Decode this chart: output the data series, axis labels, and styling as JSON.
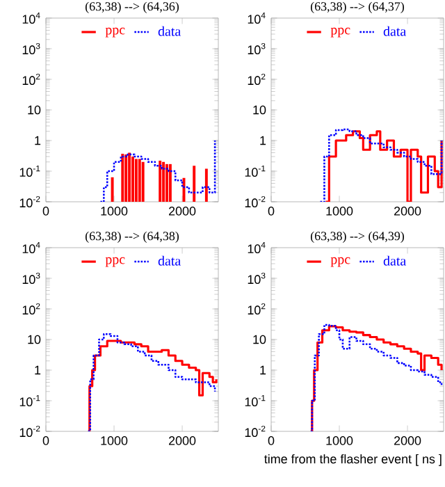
{
  "chart_data": [
    {
      "type": "step",
      "title": "(63,38) --> (64,36)",
      "log": "y",
      "legend": "top",
      "xlim": [
        0,
        2530
      ],
      "ylim": [
        0.01,
        10000
      ],
      "xticks": [
        0,
        1000,
        2000
      ],
      "yticks": [
        {
          "value": 0.01,
          "label": "10$^{-2}$"
        },
        {
          "value": 0.1,
          "label": "10$^{-1}$"
        },
        1,
        10,
        {
          "value": 100,
          "label": "10$^{2}$"
        },
        {
          "value": 1000,
          "label": "10$^{3}$"
        },
        {
          "value": 10000,
          "label": "10$^{4}$"
        }
      ],
      "series": [
        {
          "name": "ppc",
          "type": "bar",
          "color": "#ff0000",
          "line_style": "solid",
          "x": [
            975,
            1125,
            1175,
            1225,
            1275,
            1325,
            1375,
            1425,
            1675,
            1725,
            1775,
            1825,
            2025,
            2175,
            2355
          ],
          "values": [
            0.063,
            0.37,
            0.35,
            0.4,
            0.3,
            0.25,
            0.25,
            0.2,
            0.22,
            0.2,
            0.17,
            0.17,
            0.06,
            0.15,
            0.12
          ]
        },
        {
          "name": "data",
          "color": "#0000ff",
          "line_style": "dotted",
          "x": [
            800,
            850,
            900,
            1000,
            1100,
            1200,
            1300,
            1400,
            1500,
            1600,
            1700,
            1800,
            1900,
            2000,
            2100,
            2200,
            2300,
            2400,
            2480
          ],
          "values": [
            0.01,
            0.03,
            0.1,
            0.2,
            0.3,
            0.35,
            0.3,
            0.25,
            0.2,
            0.15,
            0.12,
            0.1,
            0.05,
            0.03,
            0.02,
            0.02,
            0.03,
            0.02,
            1
          ]
        }
      ]
    },
    {
      "type": "step",
      "title": "(63,38) --> (64,37)",
      "log": "y",
      "legend": "top",
      "xlim": [
        0,
        2530
      ],
      "ylim": [
        0.01,
        10000
      ],
      "xticks": [
        0,
        1000,
        2000
      ],
      "yticks": [
        {
          "value": 0.01,
          "label": "10$^{-2}$"
        },
        {
          "value": 0.1,
          "label": "10$^{-1}$"
        },
        1,
        10,
        {
          "value": 100,
          "label": "10$^{2}$"
        },
        {
          "value": 1000,
          "label": "10$^{3}$"
        },
        {
          "value": 10000,
          "label": "10$^{4}$"
        }
      ],
      "series": [
        {
          "name": "ppc",
          "color": "#ff0000",
          "line_style": "solid",
          "x": [
            800,
            850,
            950,
            1100,
            1200,
            1300,
            1350,
            1450,
            1550,
            1600,
            1700,
            1800,
            1900,
            2000,
            2050,
            2150,
            2200,
            2300,
            2400,
            2450,
            2500
          ],
          "values": [
            0.01,
            0.3,
            1.0,
            1.5,
            2,
            1.2,
            0.5,
            1.5,
            2,
            0.5,
            1,
            0.3,
            0.5,
            0.01,
            0.5,
            0.3,
            0.02,
            0.3,
            0.1,
            0.03,
            1
          ]
        },
        {
          "name": "data",
          "color": "#0000ff",
          "line_style": "dotted",
          "x": [
            720,
            780,
            850,
            950,
            1050,
            1150,
            1250,
            1350,
            1450,
            1550,
            1650,
            1750,
            1850,
            1950,
            2050,
            2150,
            2250,
            2350,
            2450,
            2500
          ],
          "values": [
            0.01,
            0.3,
            1.5,
            2.2,
            2.3,
            2,
            1.5,
            1.2,
            0.8,
            0.8,
            0.6,
            0.5,
            0.4,
            0.3,
            0.25,
            0.2,
            0.15,
            0.08,
            0.08,
            1
          ]
        }
      ]
    },
    {
      "type": "step",
      "title": "(63,38) --> (64,38)",
      "log": "y",
      "legend": "top",
      "xlim": [
        0,
        2530
      ],
      "ylim": [
        0.01,
        10000
      ],
      "xticks": [
        0,
        1000,
        2000
      ],
      "yticks": [
        {
          "value": 0.01,
          "label": "10$^{-2}$"
        },
        {
          "value": 0.1,
          "label": "10$^{-1}$"
        },
        1,
        10,
        {
          "value": 100,
          "label": "10$^{2}$"
        },
        {
          "value": 1000,
          "label": "10$^{3}$"
        },
        {
          "value": 10000,
          "label": "10$^{4}$"
        }
      ],
      "series": [
        {
          "name": "ppc",
          "color": "#ff0000",
          "line_style": "solid",
          "x": [
            620,
            640,
            680,
            720,
            800,
            900,
            1000,
            1100,
            1200,
            1300,
            1400,
            1500,
            1600,
            1700,
            1800,
            1900,
            2000,
            2100,
            2200,
            2250,
            2300,
            2400,
            2450,
            2500
          ],
          "values": [
            0.01,
            0.3,
            1,
            3,
            6,
            9,
            9,
            8,
            8,
            7,
            6,
            4,
            4,
            4.5,
            3,
            2,
            1.5,
            1.2,
            1,
            0.15,
            0.8,
            0.6,
            0.4,
            0.5
          ]
        },
        {
          "name": "data",
          "color": "#0000ff",
          "line_style": "dotted",
          "x": [
            620,
            650,
            700,
            780,
            850,
            950,
            1050,
            1150,
            1250,
            1350,
            1450,
            1550,
            1650,
            1800,
            1900,
            2000,
            2100,
            2200,
            2300,
            2400,
            2480
          ],
          "values": [
            0.01,
            0.5,
            3,
            10,
            15,
            13,
            8,
            7,
            6,
            4,
            3,
            2,
            1.5,
            1,
            0.6,
            0.5,
            0.5,
            0.4,
            0.4,
            0.3,
            0.2
          ]
        }
      ]
    },
    {
      "type": "step",
      "title": "(63,38) --> (64,39)",
      "xlabel": "time from the flasher event [ ns ]",
      "log": "y",
      "legend": "top",
      "xlim": [
        0,
        2530
      ],
      "ylim": [
        0.01,
        10000
      ],
      "xticks": [
        0,
        1000,
        2000
      ],
      "yticks": [
        {
          "value": 0.01,
          "label": "10$^{-2}$"
        },
        {
          "value": 0.1,
          "label": "10$^{-1}$"
        },
        1,
        10,
        {
          "value": 100,
          "label": "10$^{2}$"
        },
        {
          "value": 1000,
          "label": "10$^{3}$"
        },
        {
          "value": 10000,
          "label": "10$^{4}$"
        }
      ],
      "series": [
        {
          "name": "ppc",
          "color": "#ff0000",
          "line_style": "solid",
          "x": [
            580,
            600,
            630,
            680,
            750,
            850,
            950,
            1050,
            1150,
            1250,
            1350,
            1450,
            1550,
            1650,
            1750,
            1850,
            1950,
            2050,
            2150,
            2200,
            2250,
            2350,
            2450,
            2500
          ],
          "values": [
            0.01,
            0.1,
            1,
            8,
            20,
            27,
            25,
            20,
            18,
            17,
            14,
            12,
            10,
            8,
            7,
            6,
            5,
            4,
            3.5,
            1,
            3,
            2.5,
            1.5,
            1
          ]
        },
        {
          "name": "data",
          "color": "#0000ff",
          "line_style": "dotted",
          "x": [
            580,
            600,
            640,
            700,
            780,
            850,
            950,
            1000,
            1050,
            1150,
            1250,
            1350,
            1450,
            1550,
            1650,
            1750,
            1850,
            1950,
            2050,
            2150,
            2250,
            2350,
            2450,
            2500
          ],
          "values": [
            0.01,
            0.1,
            3,
            15,
            30,
            28,
            20,
            10,
            5,
            12,
            9,
            7,
            5,
            4,
            3,
            2.5,
            1.7,
            1.4,
            1,
            0.9,
            0.7,
            0.6,
            0.4,
            0.3
          ]
        }
      ]
    }
  ]
}
